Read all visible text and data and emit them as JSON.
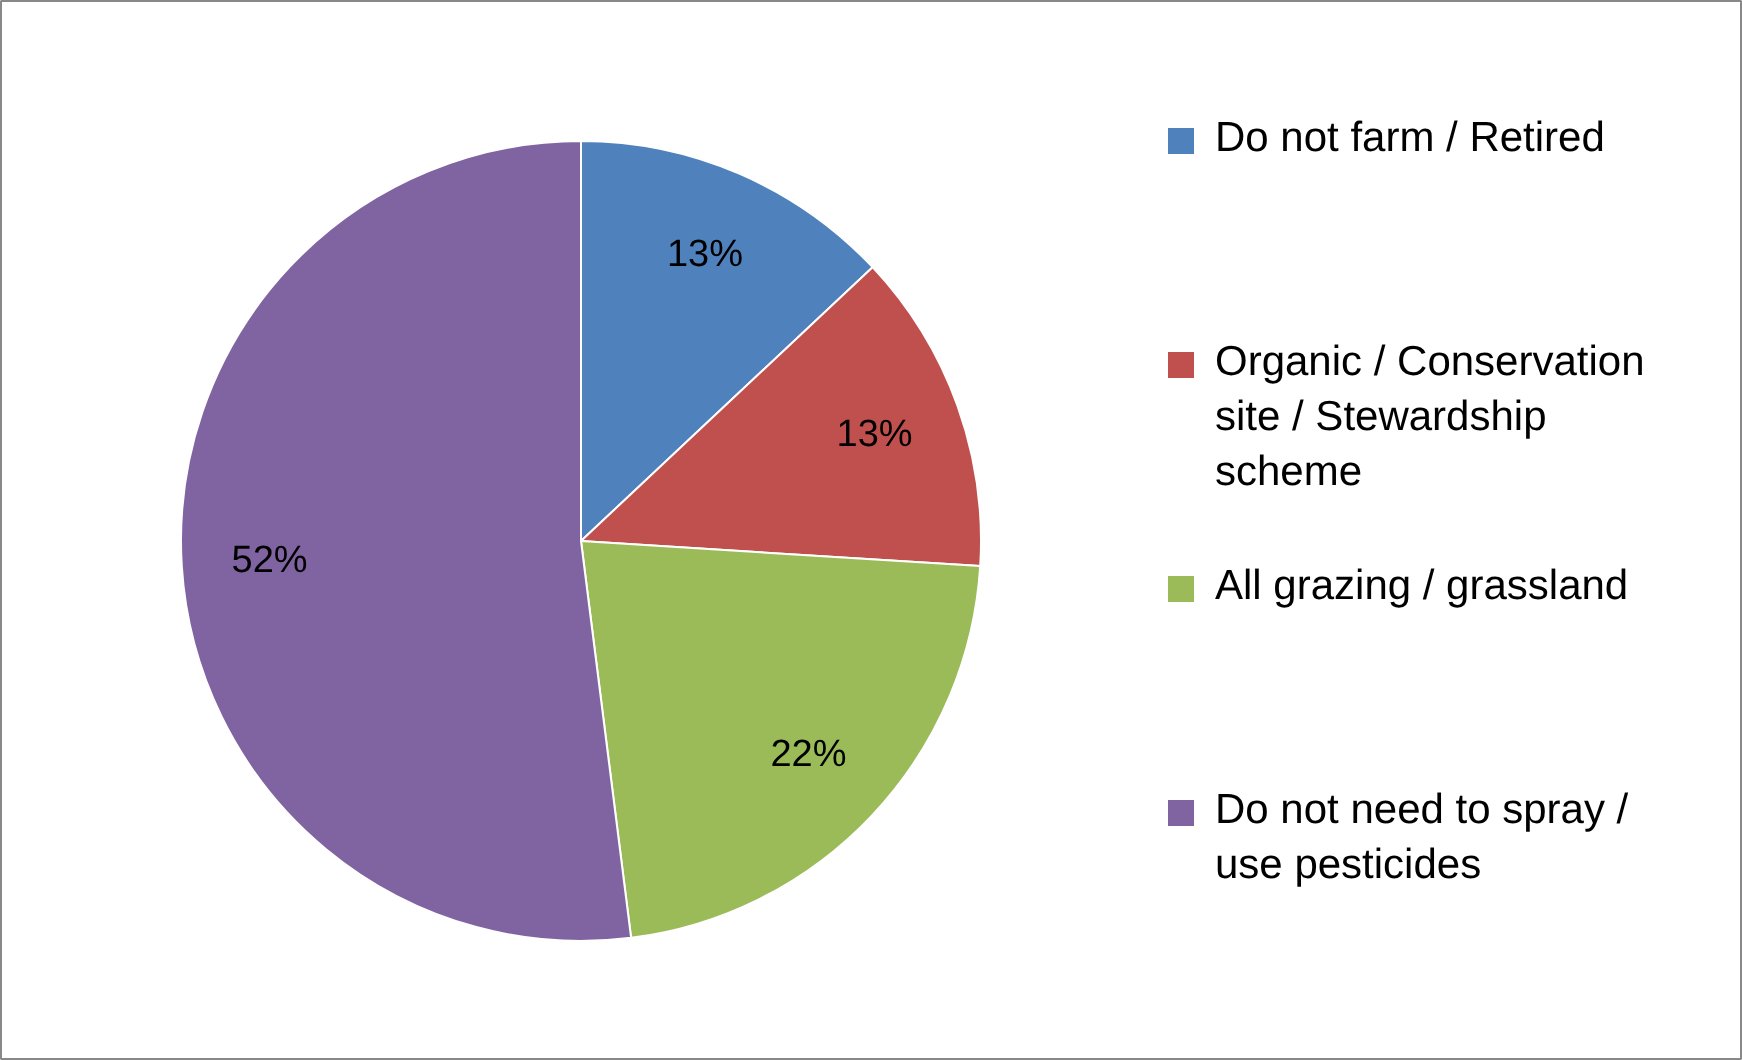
{
  "chart_data": {
    "type": "pie",
    "categories": [
      "Do not farm / Retired",
      "Organic / Conservation site / Stewardship scheme",
      "All grazing / grassland",
      "Do not need to spray / use pesticides"
    ],
    "values": [
      13,
      13,
      22,
      52
    ],
    "value_labels": [
      "13%",
      "13%",
      "22%",
      "52%"
    ],
    "colors": [
      "#4f81bd",
      "#c0504d",
      "#9bbb59",
      "#8064a2"
    ],
    "legend": "right"
  }
}
